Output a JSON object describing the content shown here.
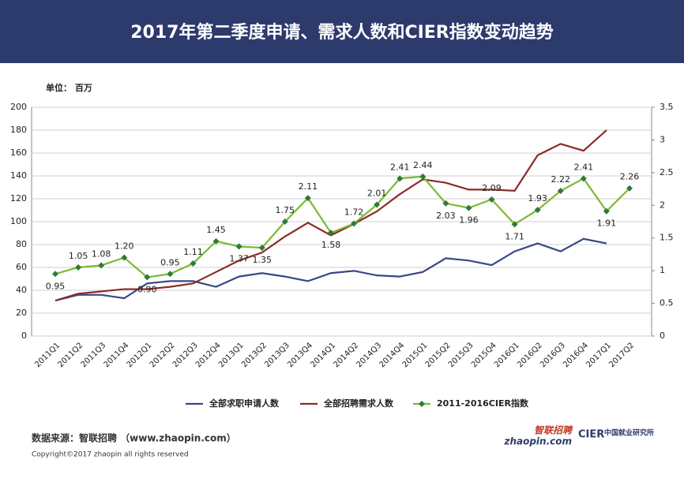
{
  "chart_data": {
    "type": "line",
    "title": "2017年第二季度申请、需求人数和CIER指数变动趋势",
    "unit_label": "单位： 百万",
    "categories": [
      "2011Q1",
      "2011Q2",
      "2011Q3",
      "2011Q4",
      "2012Q1",
      "2012Q2",
      "2012Q3",
      "2012Q4",
      "2013Q1",
      "2013Q2",
      "2013Q3",
      "2013Q4",
      "2014Q1",
      "2014Q2",
      "2014Q3",
      "2014Q4",
      "2015Q1",
      "2015Q2",
      "2015Q3",
      "2015Q4",
      "2016Q1",
      "2016Q2",
      "2016Q3",
      "2016Q4",
      "2017Q1",
      "2017Q2"
    ],
    "series": [
      {
        "name": "全部求职申请人数",
        "color": "#3a4785",
        "values": [
          31,
          36,
          36,
          33,
          46,
          48,
          48,
          43,
          52,
          55,
          52,
          48,
          55,
          57,
          53,
          52,
          56,
          68,
          66,
          62,
          74,
          81,
          74,
          85,
          81,
          null
        ]
      },
      {
        "name": "全部招聘需求人数",
        "color": "#8c2b24",
        "values": [
          31,
          37,
          39,
          41,
          41,
          43,
          46,
          56,
          66,
          73,
          87,
          99,
          88,
          98,
          109,
          124,
          137,
          134,
          128,
          128,
          127,
          158,
          168,
          162,
          180,
          null
        ]
      },
      {
        "name": "2011-2016CIER指数",
        "color": "#7cba31",
        "axis": "y2",
        "marker": "diamond",
        "values": [
          0.95,
          1.05,
          1.08,
          1.2,
          0.9,
          0.95,
          1.11,
          1.45,
          1.37,
          1.35,
          1.75,
          2.11,
          1.58,
          1.72,
          2.01,
          2.41,
          2.44,
          2.03,
          1.96,
          2.09,
          1.71,
          1.93,
          2.22,
          2.41,
          1.91,
          2.26
        ],
        "value_labels": [
          "0.95",
          "1.05",
          "1.08",
          "1.20",
          "0.90",
          "0.95",
          "1.11",
          "1.45",
          "1.37",
          "1.35",
          "1.75",
          "2.11",
          "1.58",
          "1.72",
          "2.01",
          "2.41",
          "2.44",
          "2.03",
          "1.96",
          "2.09",
          "1.71",
          "1.93",
          "2.22",
          "2.41",
          "1.91",
          "2.26"
        ]
      }
    ],
    "ylim": [
      0,
      200
    ],
    "yticks": [
      0,
      20,
      40,
      60,
      80,
      100,
      120,
      140,
      160,
      180,
      200
    ],
    "y2lim": [
      0,
      3.5
    ],
    "y2ticks": [
      0,
      0.5,
      1,
      1.5,
      2,
      2.5,
      3,
      3.5
    ],
    "grid": true,
    "legend": "bottom",
    "source": "数据来源：智联招聘 （www.zhaopin.com）",
    "copyright": "Copyright©2017 zhaopin all rights reserved",
    "logos": [
      "智联招聘",
      "zhaopin.com",
      "CIER",
      "中国就业研究所"
    ]
  }
}
